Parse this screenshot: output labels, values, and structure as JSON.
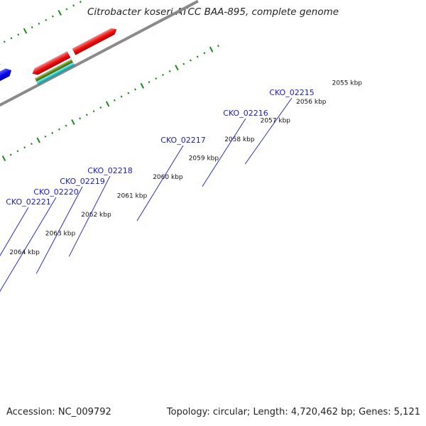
{
  "title": "Citrobacter koseri ATCC BAA-895, complete genome",
  "footer": {
    "accession": "Accession: NC_009792",
    "topology": "Topology: circular; Length: 4,720,462 bp; Genes: 5,121"
  },
  "colors": {
    "backbone": "#8a8a8a",
    "tick": "#1a8a1a",
    "cds_blue": "#0a0aee",
    "cog_lime": "#a8e838",
    "cog_olive": "#5c8a1c",
    "cog_cyan": "#22cccc",
    "cog_gray": "#bdbdbd",
    "cog_red": "#ee1111",
    "label": "#1a1acc"
  },
  "kbp_labels": [
    "2055 kbp",
    "2056 kbp",
    "2057 kbp",
    "2058 kbp",
    "2059 kbp",
    "2060 kbp",
    "2061 kbp",
    "2062 kbp",
    "2063 kbp",
    "2064 kbp"
  ],
  "gene_labels": [
    "CKO_02215",
    "CKO_02216",
    "CKO_02217",
    "CKO_02218",
    "CKO_02219",
    "CKO_02220",
    "CKO_02221"
  ]
}
